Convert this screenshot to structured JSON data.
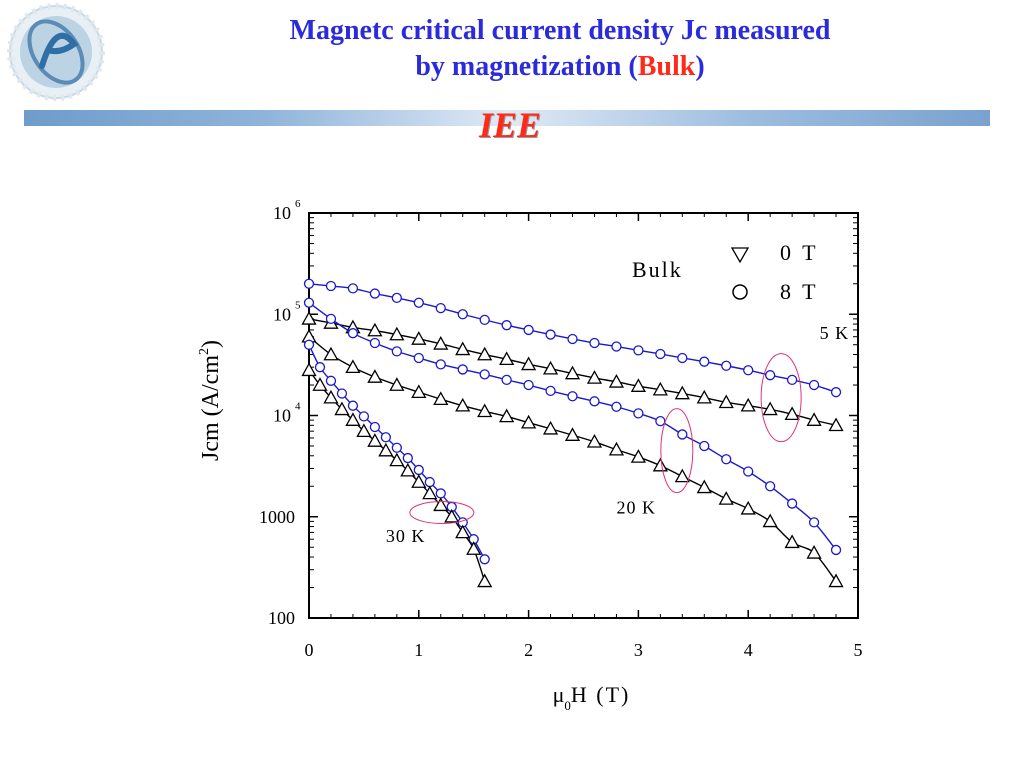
{
  "header": {
    "title_line1": "Magnetc critical current density Jc measured",
    "title_line2_prefix": "by magnetization (",
    "title_line2_highlight": "Bulk",
    "title_line2_suffix": ")",
    "subtitle": "IEE",
    "logo_icon": "ieee-globe-logo"
  },
  "colors": {
    "title": "#2b2bdc",
    "accent": "#ff2a1a",
    "series_8T": "#1a1acc",
    "series_0T": "#000000",
    "ellipse": "#e0307a"
  },
  "chart_data": {
    "type": "scatter",
    "xlabel_main": "μ",
    "xlabel_sub": "0",
    "xlabel_rest": "H (T)",
    "ylabel_main": "Jcm (A/cm",
    "ylabel_sup": "2",
    "ylabel_end": ")",
    "xlim": [
      0,
      5
    ],
    "ylim": [
      100,
      1000000
    ],
    "yscale": "log",
    "x_ticks": [
      "0",
      "1",
      "2",
      "3",
      "4",
      "5"
    ],
    "y_ticks": [
      {
        "value": 100,
        "base": "100",
        "exp": ""
      },
      {
        "value": 1000,
        "base": "1000",
        "exp": ""
      },
      {
        "value": 10000,
        "base": "10",
        "exp": "4"
      },
      {
        "value": 100000,
        "base": "10",
        "exp": "5"
      },
      {
        "value": 1000000,
        "base": "10",
        "exp": "6"
      }
    ],
    "legend": {
      "label": "Bulk",
      "placement": "top-right",
      "entries": [
        {
          "symbol": "triangle-down",
          "label": "0 T"
        },
        {
          "symbol": "circle",
          "label": "8 T"
        }
      ]
    },
    "annotations": [
      {
        "text": "5 K",
        "x": 4.65,
        "y": 57000
      },
      {
        "text": "20 K",
        "x": 2.8,
        "y": 1080
      },
      {
        "text": "30 K",
        "x": 0.7,
        "y": 560
      }
    ],
    "ellipses": [
      {
        "cx": 4.3,
        "cy": 15000,
        "label": "5 K"
      },
      {
        "cx": 3.35,
        "cy": 4500,
        "label": "20 K"
      },
      {
        "cx": 1.21,
        "cy": 1100,
        "label": "30 K"
      }
    ],
    "series": [
      {
        "name": "8 T",
        "temp": "5 K",
        "marker": "circle",
        "x": [
          0,
          0.2,
          0.4,
          0.6,
          0.8,
          1.0,
          1.2,
          1.4,
          1.6,
          1.8,
          2.0,
          2.2,
          2.4,
          2.6,
          2.8,
          3.0,
          3.2,
          3.4,
          3.6,
          3.8,
          4.0,
          4.2,
          4.4,
          4.6,
          4.8
        ],
        "y": [
          200000,
          190000,
          180000,
          160000,
          145000,
          130000,
          115000,
          100000,
          88000,
          78000,
          70000,
          63000,
          57000,
          52000,
          48000,
          44000,
          40500,
          37000,
          34000,
          31000,
          28000,
          25000,
          22500,
          20000,
          17000
        ]
      },
      {
        "name": "0 T",
        "temp": "5 K",
        "marker": "triangle",
        "x": [
          0,
          0.2,
          0.4,
          0.6,
          0.8,
          1.0,
          1.2,
          1.4,
          1.6,
          1.8,
          2.0,
          2.2,
          2.4,
          2.6,
          2.8,
          3.0,
          3.2,
          3.4,
          3.6,
          3.8,
          4.0,
          4.2,
          4.4,
          4.6,
          4.8
        ],
        "y": [
          90000,
          82000,
          74000,
          69000,
          63000,
          57000,
          51000,
          45000,
          40000,
          36000,
          32000,
          29000,
          26000,
          23500,
          21500,
          19500,
          18000,
          16500,
          15000,
          13500,
          12500,
          11500,
          10300,
          9000,
          8000
        ]
      },
      {
        "name": "8 T",
        "temp": "20 K",
        "marker": "circle",
        "x": [
          0,
          0.2,
          0.4,
          0.6,
          0.8,
          1.0,
          1.2,
          1.4,
          1.6,
          1.8,
          2.0,
          2.2,
          2.4,
          2.6,
          2.8,
          3.0,
          3.2,
          3.4,
          3.6,
          3.8,
          4.0,
          4.2,
          4.4,
          4.6,
          4.8
        ],
        "y": [
          130000,
          90000,
          65000,
          52000,
          43000,
          37000,
          32000,
          28500,
          25500,
          22500,
          20000,
          17500,
          15500,
          13800,
          12200,
          10500,
          8800,
          6500,
          5000,
          3700,
          2800,
          2000,
          1350,
          880,
          470
        ]
      },
      {
        "name": "0 T",
        "temp": "20 K",
        "marker": "triangle",
        "x": [
          0,
          0.2,
          0.4,
          0.6,
          0.8,
          1.0,
          1.2,
          1.4,
          1.6,
          1.8,
          2.0,
          2.2,
          2.4,
          2.6,
          2.8,
          3.0,
          3.2,
          3.4,
          3.6,
          3.8,
          4.0,
          4.2,
          4.4,
          4.6,
          4.8
        ],
        "y": [
          60000,
          40000,
          30000,
          24000,
          20000,
          17000,
          14500,
          12500,
          11000,
          9800,
          8500,
          7400,
          6400,
          5500,
          4600,
          3900,
          3200,
          2500,
          1950,
          1500,
          1200,
          900,
          560,
          440,
          230
        ]
      },
      {
        "name": "8 T",
        "temp": "30 K",
        "marker": "circle",
        "x": [
          0,
          0.1,
          0.2,
          0.3,
          0.4,
          0.5,
          0.6,
          0.7,
          0.8,
          0.9,
          1.0,
          1.1,
          1.2,
          1.3,
          1.4,
          1.5,
          1.6
        ],
        "y": [
          50000,
          30000,
          22000,
          16500,
          12500,
          9800,
          7700,
          6100,
          4800,
          3800,
          2900,
          2200,
          1700,
          1250,
          880,
          600,
          380
        ]
      },
      {
        "name": "0 T",
        "temp": "30 K",
        "marker": "triangle",
        "x": [
          0,
          0.1,
          0.2,
          0.3,
          0.4,
          0.5,
          0.6,
          0.7,
          0.8,
          0.9,
          1.0,
          1.1,
          1.2,
          1.3,
          1.4,
          1.5,
          1.6
        ],
        "y": [
          28000,
          20000,
          15000,
          11500,
          9000,
          7000,
          5600,
          4500,
          3600,
          2850,
          2200,
          1700,
          1300,
          1000,
          700,
          480,
          230
        ]
      }
    ]
  }
}
